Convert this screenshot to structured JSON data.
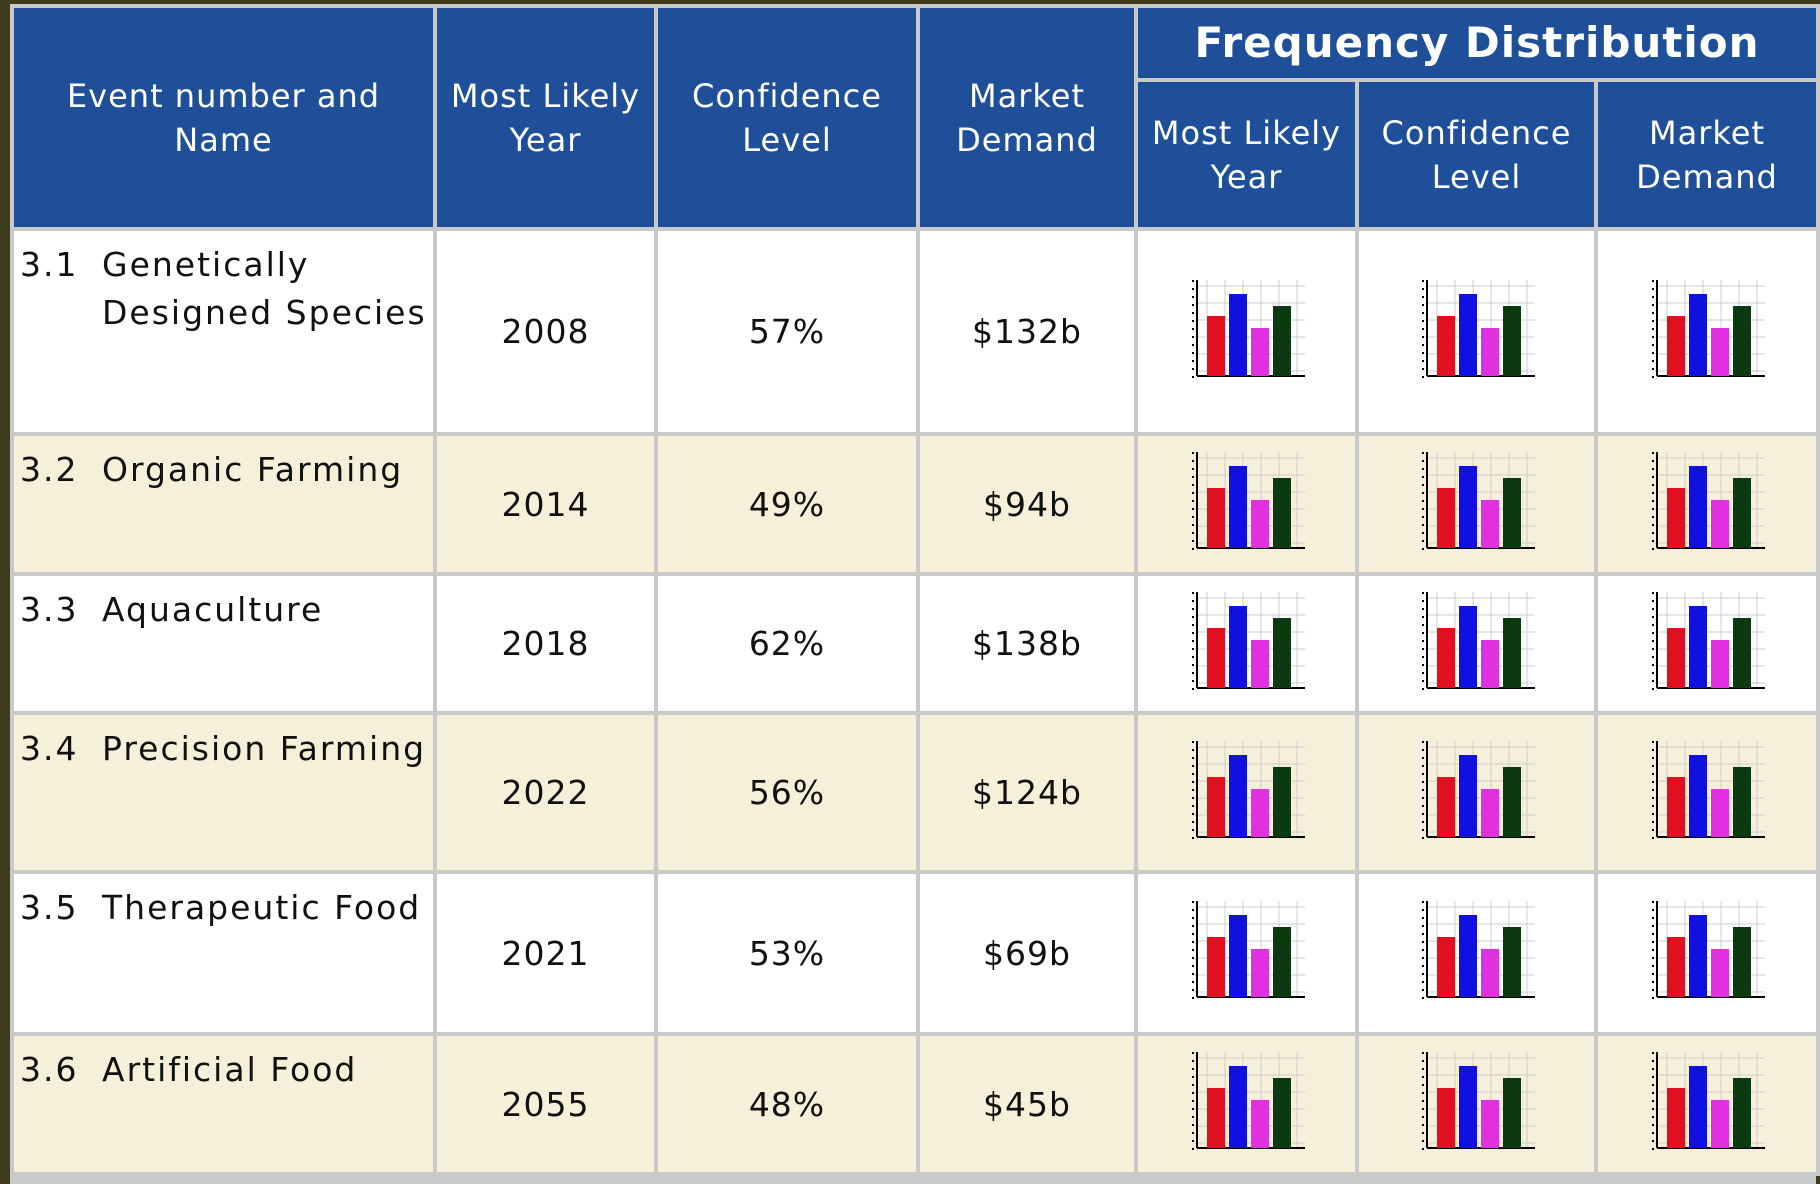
{
  "header": {
    "group_title": "Frequency Distribution",
    "columns": [
      "Event number and Name",
      "Most Likely Year",
      "Confidence Level",
      "Market Demand"
    ],
    "distribution_columns": [
      "Most Likely Year",
      "Confidence Level",
      "Market Demand"
    ]
  },
  "table": {
    "rows": [
      [
        "3.1",
        "Genetically Designed Species",
        "2008",
        "57%",
        "$132b"
      ],
      [
        "3.2",
        "Organic Farming",
        "2014",
        "49%",
        "$94b"
      ],
      [
        "3.3",
        "Aquaculture",
        "2018",
        "62%",
        "$138b"
      ],
      [
        "3.4",
        "Precision Farming",
        "2022",
        "56%",
        "$124b"
      ],
      [
        "3.5",
        "Therapeutic Food",
        "2021",
        "53%",
        "$69b"
      ],
      [
        "3.6",
        "Artificial Food",
        "2055",
        "48%",
        "$45b"
      ]
    ]
  }
}
